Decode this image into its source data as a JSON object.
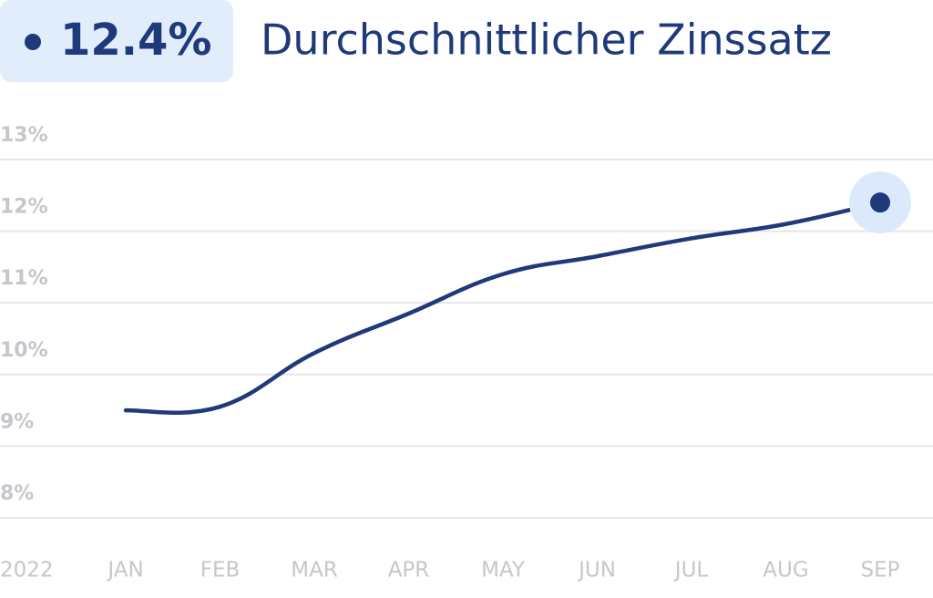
{
  "chart_data": {
    "type": "line",
    "badge": "12.4%",
    "title": "Durchschnittlicher Zinssatz",
    "year": "2022",
    "categories": [
      "JAN",
      "FEB",
      "MAR",
      "APR",
      "MAY",
      "JUN",
      "JUL",
      "AUG",
      "SEP"
    ],
    "series": [
      {
        "color": "#1f3a7a",
        "values": [
          9.5,
          9.55,
          10.3,
          10.85,
          11.4,
          11.65,
          11.9,
          12.1,
          12.4
        ]
      }
    ],
    "ylim": [
      8,
      13
    ],
    "yticks": [
      {
        "value": 8,
        "label": "8%"
      },
      {
        "value": 9,
        "label": "9%"
      },
      {
        "value": 10,
        "label": "10%"
      },
      {
        "value": 11,
        "label": "11%"
      },
      {
        "value": 12,
        "label": "12%"
      },
      {
        "value": 13,
        "label": "13%"
      }
    ],
    "grid": true
  }
}
